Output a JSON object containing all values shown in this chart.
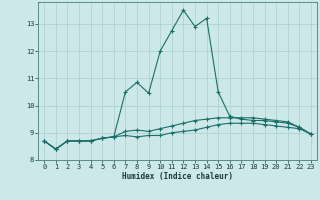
{
  "xlabel": "Humidex (Indice chaleur)",
  "background_color": "#cce8e8",
  "grid_color": "#aacece",
  "line_color": "#1a6e6a",
  "xlim": [
    -0.5,
    23.5
  ],
  "ylim": [
    8,
    13.8
  ],
  "yticks": [
    8,
    9,
    10,
    11,
    12,
    13
  ],
  "xticks": [
    0,
    1,
    2,
    3,
    4,
    5,
    6,
    7,
    8,
    9,
    10,
    11,
    12,
    13,
    14,
    15,
    16,
    17,
    18,
    19,
    20,
    21,
    22,
    23
  ],
  "series1_x": [
    0,
    1,
    2,
    3,
    4,
    5,
    6,
    7,
    8,
    9,
    10,
    11,
    12,
    13,
    14,
    15,
    16,
    17,
    18,
    19,
    20,
    21,
    22,
    23
  ],
  "series1_y": [
    8.7,
    8.4,
    8.7,
    8.7,
    8.7,
    8.8,
    8.85,
    8.9,
    8.85,
    8.9,
    8.9,
    9.0,
    9.05,
    9.1,
    9.2,
    9.3,
    9.35,
    9.35,
    9.35,
    9.3,
    9.25,
    9.2,
    9.15,
    8.95
  ],
  "series2_x": [
    0,
    1,
    2,
    3,
    4,
    5,
    6,
    7,
    8,
    9,
    10,
    11,
    12,
    13,
    14,
    15,
    16,
    17,
    18,
    19,
    20,
    21,
    22,
    23
  ],
  "series2_y": [
    8.7,
    8.4,
    8.7,
    8.7,
    8.7,
    8.8,
    8.85,
    10.5,
    10.85,
    10.45,
    12.0,
    12.75,
    13.5,
    12.9,
    13.2,
    10.5,
    9.6,
    9.5,
    9.45,
    9.45,
    9.4,
    9.35,
    9.2,
    8.95
  ],
  "series3_x": [
    0,
    1,
    2,
    3,
    4,
    5,
    6,
    7,
    8,
    9,
    10,
    11,
    12,
    13,
    14,
    15,
    16,
    17,
    18,
    19,
    20,
    21,
    22,
    23
  ],
  "series3_y": [
    8.7,
    8.4,
    8.7,
    8.7,
    8.7,
    8.8,
    8.85,
    9.05,
    9.1,
    9.05,
    9.15,
    9.25,
    9.35,
    9.45,
    9.5,
    9.55,
    9.55,
    9.55,
    9.55,
    9.5,
    9.45,
    9.4,
    9.2,
    8.95
  ]
}
